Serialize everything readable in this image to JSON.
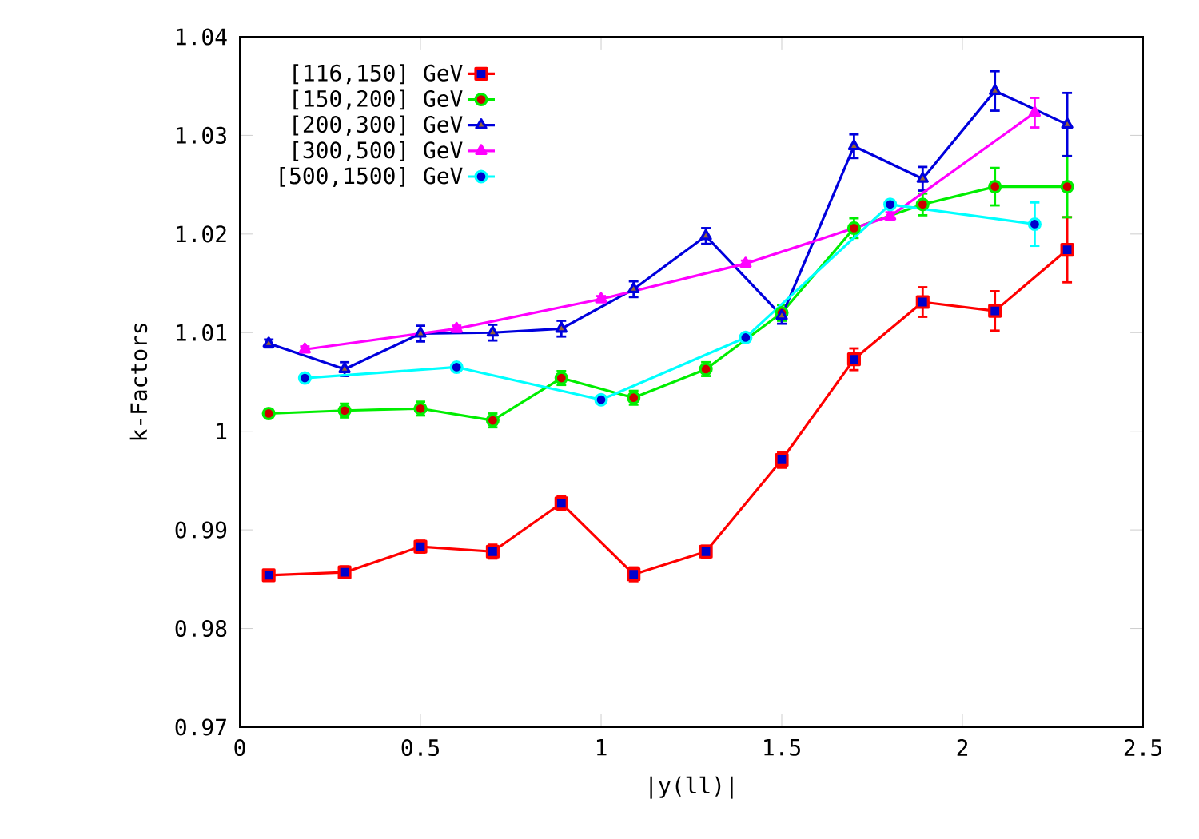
{
  "chart_data": {
    "type": "line",
    "xlabel": "|y(ll)|",
    "ylabel": "k-Factors",
    "xlim": [
      0,
      2.5
    ],
    "xticks": [
      0,
      0.5,
      1,
      1.5,
      2,
      2.5
    ],
    "ylim": [
      0.97,
      1.04
    ],
    "yticks": [
      0.97,
      0.98,
      0.99,
      1,
      1.01,
      1.02,
      1.03,
      1.04
    ],
    "grid": false,
    "legend": "top left",
    "series": [
      {
        "name": "[116,150] GeV",
        "color": "#ff0000",
        "marker": "square",
        "x": [
          0.08,
          0.29,
          0.5,
          0.7,
          0.89,
          1.09,
          1.29,
          1.5,
          1.7,
          1.89,
          2.09,
          2.29
        ],
        "values": [
          0.9854,
          0.9857,
          0.9883,
          0.9878,
          0.9927,
          0.9855,
          0.9878,
          0.9971,
          1.0073,
          1.0131,
          1.0122,
          1.0184
        ],
        "errors": [
          0.0004,
          0.0006,
          0.0006,
          0.0007,
          0.0007,
          0.0007,
          0.0006,
          0.0008,
          0.0011,
          0.0015,
          0.002,
          0.0033
        ]
      },
      {
        "name": "[150,200] GeV",
        "color": "#00ee00",
        "marker": "circle",
        "x": [
          0.08,
          0.29,
          0.5,
          0.7,
          0.89,
          1.09,
          1.29,
          1.5,
          1.7,
          1.89,
          2.09,
          2.29
        ],
        "values": [
          1.0018,
          1.0021,
          1.0023,
          1.0011,
          1.0054,
          1.0034,
          1.0063,
          1.012,
          1.0206,
          1.023,
          1.0248,
          1.0248
        ],
        "errors": [
          0.0004,
          0.0007,
          0.0007,
          0.0007,
          0.0007,
          0.0007,
          0.0007,
          0.0008,
          0.001,
          0.0011,
          0.0019,
          0.0031
        ]
      },
      {
        "name": "[200,300] GeV",
        "color": "#0000dd",
        "marker": "triangle",
        "x": [
          0.08,
          0.29,
          0.5,
          0.7,
          0.89,
          1.09,
          1.29,
          1.5,
          1.7,
          1.89,
          2.09,
          2.29
        ],
        "values": [
          1.0089,
          1.0063,
          1.0099,
          1.01,
          1.0104,
          1.0144,
          1.0198,
          1.0117,
          1.0289,
          1.0256,
          1.0345,
          1.0311
        ],
        "errors": [
          0.0004,
          0.0007,
          0.0008,
          0.0008,
          0.0008,
          0.0008,
          0.0008,
          0.0008,
          0.0012,
          0.0012,
          0.002,
          0.0032
        ]
      },
      {
        "name": "[300,500] GeV",
        "color": "#ff00ff",
        "marker": "triangle",
        "x": [
          0.18,
          0.6,
          1.0,
          1.4,
          1.8,
          2.2
        ],
        "values": [
          1.0083,
          1.0104,
          1.0134,
          1.017,
          1.0218,
          1.0323
        ],
        "errors": [
          0.0003,
          0.0003,
          0.0003,
          0.0003,
          0.0004,
          0.0015
        ]
      },
      {
        "name": "[500,1500] GeV",
        "color": "#00ffff",
        "marker": "circle",
        "x": [
          0.18,
          0.6,
          1.0,
          1.4,
          1.8,
          2.2
        ],
        "values": [
          1.0054,
          1.0065,
          1.0032,
          1.0095,
          1.023,
          1.021
        ],
        "errors": [
          0.0003,
          0.0003,
          0.0003,
          0.0003,
          0.0004,
          0.0022
        ]
      }
    ]
  }
}
